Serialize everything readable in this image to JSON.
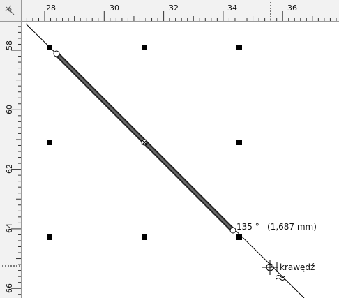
{
  "rulers": {
    "horizontal_labels": [
      "28",
      "30",
      "32",
      "34",
      "36"
    ],
    "vertical_labels": [
      "58",
      "60",
      "62",
      "64",
      "66"
    ],
    "corner_icon": "ruler-origin-crosshair-icon"
  },
  "canvas": {
    "angle_readout": "135 °",
    "length_readout": "(1,687 mm)",
    "snap_label": "krawędź",
    "snap_icon": "snap-crosshair-icon",
    "line_color": "#333333",
    "handle_color": "#000000"
  }
}
